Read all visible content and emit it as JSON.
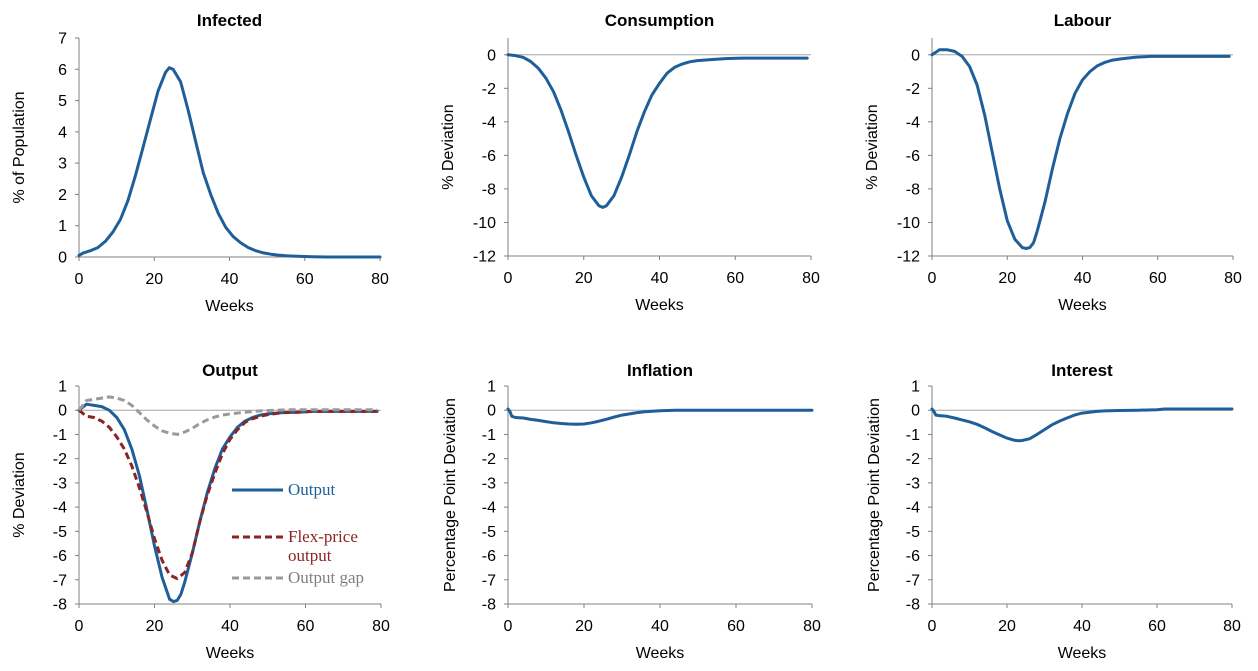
{
  "colors": {
    "blue": "#1f5f99",
    "red": "#8b2525",
    "gray": "#9a9a9a",
    "zero": "#a6a6a6",
    "axis": "#808080"
  },
  "chart_data": [
    {
      "type": "line",
      "title": "Infected",
      "xlabel": "Weeks",
      "ylabel": "% of Population",
      "xlim": [
        0,
        80
      ],
      "ylim": [
        0,
        7
      ],
      "xticks": [
        0,
        20,
        40,
        60,
        80
      ],
      "yticks": [
        0,
        1,
        2,
        3,
        4,
        5,
        6,
        7
      ],
      "zero_line": false,
      "series": [
        {
          "color": "blue",
          "dash": "solid",
          "x": [
            0,
            1,
            3,
            5,
            7,
            9,
            11,
            13,
            15,
            17,
            19,
            21,
            23,
            24,
            25,
            27,
            29,
            31,
            33,
            35,
            37,
            39,
            41,
            43,
            45,
            47,
            49,
            51,
            53,
            55,
            57,
            59,
            62,
            66,
            70,
            75,
            80
          ],
          "y": [
            0.05,
            0.12,
            0.2,
            0.3,
            0.5,
            0.8,
            1.2,
            1.8,
            2.6,
            3.5,
            4.4,
            5.3,
            5.9,
            6.05,
            6.0,
            5.6,
            4.7,
            3.7,
            2.7,
            2.0,
            1.4,
            0.95,
            0.65,
            0.45,
            0.3,
            0.2,
            0.13,
            0.09,
            0.06,
            0.04,
            0.03,
            0.02,
            0.01,
            0.0,
            0.0,
            0.0,
            0.0
          ]
        }
      ]
    },
    {
      "type": "line",
      "title": "Consumption",
      "xlabel": "Weeks",
      "ylabel": "% Deviation",
      "xlim": [
        0,
        80
      ],
      "ylim": [
        -12,
        1
      ],
      "xticks": [
        0,
        20,
        40,
        60,
        80
      ],
      "yticks": [
        0,
        -2,
        -4,
        -6,
        -8,
        -10,
        -12
      ],
      "zero_line": true,
      "series": [
        {
          "color": "blue",
          "dash": "solid",
          "x": [
            0,
            2,
            4,
            6,
            8,
            10,
            12,
            14,
            16,
            18,
            20,
            22,
            24,
            25,
            26,
            28,
            30,
            32,
            34,
            36,
            38,
            40,
            42,
            44,
            46,
            48,
            50,
            54,
            58,
            62,
            70,
            79
          ],
          "y": [
            0,
            -0.05,
            -0.15,
            -0.4,
            -0.8,
            -1.4,
            -2.2,
            -3.3,
            -4.6,
            -6.0,
            -7.3,
            -8.4,
            -9.0,
            -9.1,
            -9.0,
            -8.4,
            -7.3,
            -6.0,
            -4.6,
            -3.4,
            -2.4,
            -1.7,
            -1.1,
            -0.75,
            -0.55,
            -0.42,
            -0.35,
            -0.28,
            -0.22,
            -0.2,
            -0.2,
            -0.2
          ]
        }
      ]
    },
    {
      "type": "line",
      "title": "Labour",
      "xlabel": "Weeks",
      "ylabel": "% Deviation",
      "xlim": [
        0,
        80
      ],
      "ylim": [
        -12,
        1
      ],
      "xticks": [
        0,
        20,
        40,
        60,
        80
      ],
      "yticks": [
        0,
        -2,
        -4,
        -6,
        -8,
        -10,
        -12
      ],
      "zero_line": true,
      "series": [
        {
          "color": "blue",
          "dash": "solid",
          "x": [
            0,
            1,
            2,
            4,
            6,
            8,
            10,
            12,
            14,
            16,
            18,
            20,
            22,
            24,
            25,
            26,
            27,
            28,
            30,
            32,
            34,
            36,
            38,
            40,
            42,
            44,
            46,
            48,
            50,
            54,
            58,
            62,
            70,
            79
          ],
          "y": [
            0,
            0.15,
            0.3,
            0.3,
            0.2,
            -0.1,
            -0.7,
            -1.8,
            -3.6,
            -5.8,
            -8.0,
            -9.9,
            -11.0,
            -11.5,
            -11.55,
            -11.5,
            -11.2,
            -10.5,
            -8.8,
            -6.8,
            -5.0,
            -3.5,
            -2.3,
            -1.5,
            -1.0,
            -0.65,
            -0.45,
            -0.32,
            -0.25,
            -0.15,
            -0.1,
            -0.1,
            -0.1,
            -0.1
          ]
        }
      ]
    },
    {
      "type": "line",
      "title": "Output",
      "xlabel": "Weeks",
      "ylabel": "% Deviation",
      "xlim": [
        0,
        80
      ],
      "ylim": [
        -8,
        1
      ],
      "xticks": [
        0,
        20,
        40,
        60,
        80
      ],
      "yticks": [
        1,
        0,
        -1,
        -2,
        -3,
        -4,
        -5,
        -6,
        -7,
        -8
      ],
      "zero_line": true,
      "legend": {
        "placement": "inside-right",
        "entries": [
          "Output",
          "Flex-price output",
          "Output gap"
        ]
      },
      "series": [
        {
          "name": "Output",
          "color": "blue",
          "dash": "solid",
          "x": [
            0,
            2,
            4,
            6,
            8,
            10,
            12,
            14,
            16,
            18,
            20,
            22,
            24,
            25,
            26,
            27,
            28,
            30,
            32,
            34,
            36,
            38,
            40,
            42,
            44,
            46,
            48,
            50,
            54,
            58,
            62,
            70,
            79
          ],
          "y": [
            0,
            0.25,
            0.2,
            0.15,
            0.0,
            -0.3,
            -0.8,
            -1.6,
            -2.7,
            -4.1,
            -5.6,
            -6.9,
            -7.8,
            -7.9,
            -7.85,
            -7.6,
            -7.1,
            -5.9,
            -4.6,
            -3.4,
            -2.4,
            -1.6,
            -1.1,
            -0.7,
            -0.45,
            -0.3,
            -0.2,
            -0.15,
            -0.1,
            -0.08,
            -0.05,
            -0.05,
            -0.05
          ]
        },
        {
          "name": "Flex-price output",
          "color": "red",
          "dash": "dashed",
          "x": [
            0,
            2,
            4,
            6,
            8,
            10,
            12,
            14,
            16,
            18,
            20,
            22,
            24,
            26,
            28,
            30,
            32,
            34,
            36,
            38,
            40,
            42,
            44,
            46,
            48,
            50,
            54,
            58,
            62,
            70,
            79
          ],
          "y": [
            0,
            -0.25,
            -0.3,
            -0.45,
            -0.7,
            -1.1,
            -1.6,
            -2.3,
            -3.2,
            -4.2,
            -5.3,
            -6.2,
            -6.8,
            -6.95,
            -6.7,
            -5.9,
            -4.6,
            -3.5,
            -2.6,
            -1.8,
            -1.2,
            -0.8,
            -0.5,
            -0.35,
            -0.25,
            -0.18,
            -0.1,
            -0.08,
            -0.05,
            -0.05,
            -0.05
          ]
        },
        {
          "name": "Output gap",
          "color": "gray",
          "dash": "dashed",
          "x": [
            0,
            2,
            4,
            6,
            8,
            10,
            12,
            14,
            16,
            18,
            20,
            22,
            24,
            26,
            28,
            30,
            32,
            34,
            36,
            38,
            40,
            44,
            48,
            52,
            56,
            60,
            66,
            72,
            79
          ],
          "y": [
            0,
            0.4,
            0.45,
            0.5,
            0.55,
            0.5,
            0.4,
            0.2,
            -0.1,
            -0.4,
            -0.65,
            -0.85,
            -0.95,
            -1.0,
            -0.9,
            -0.75,
            -0.55,
            -0.4,
            -0.28,
            -0.2,
            -0.15,
            -0.08,
            -0.03,
            0.0,
            0.02,
            0.02,
            0.02,
            0.02,
            0.02
          ]
        }
      ]
    },
    {
      "type": "line",
      "title": "Inflation",
      "xlabel": "Weeks",
      "ylabel": "Percentage Point Deviation",
      "xlim": [
        0,
        80
      ],
      "ylim": [
        -8,
        1
      ],
      "xticks": [
        0,
        20,
        40,
        60,
        80
      ],
      "yticks": [
        1,
        0,
        -1,
        -2,
        -3,
        -4,
        -5,
        -6,
        -7,
        -8
      ],
      "zero_line": true,
      "series": [
        {
          "color": "blue",
          "dash": "solid",
          "x": [
            0,
            0.5,
            1,
            2,
            4,
            6,
            8,
            10,
            12,
            14,
            16,
            18,
            20,
            22,
            24,
            26,
            28,
            30,
            32,
            34,
            36,
            38,
            40,
            44,
            50,
            60,
            70,
            80
          ],
          "y": [
            0.05,
            -0.05,
            -0.25,
            -0.3,
            -0.32,
            -0.38,
            -0.42,
            -0.47,
            -0.52,
            -0.55,
            -0.57,
            -0.58,
            -0.57,
            -0.52,
            -0.45,
            -0.37,
            -0.28,
            -0.2,
            -0.15,
            -0.1,
            -0.06,
            -0.04,
            -0.02,
            0.0,
            0.0,
            0.0,
            0.0,
            0.0
          ]
        }
      ]
    },
    {
      "type": "line",
      "title": "Interest",
      "xlabel": "Weeks",
      "ylabel": "Percentage Point Deviation",
      "xlim": [
        0,
        80
      ],
      "ylim": [
        -8,
        1
      ],
      "xticks": [
        0,
        20,
        40,
        60,
        80
      ],
      "yticks": [
        1,
        0,
        -1,
        -2,
        -3,
        -4,
        -5,
        -6,
        -7,
        -8
      ],
      "zero_line": true,
      "series": [
        {
          "color": "blue",
          "dash": "solid",
          "x": [
            0,
            0.5,
            1,
            2,
            4,
            6,
            8,
            10,
            12,
            14,
            16,
            18,
            20,
            22,
            23,
            24,
            26,
            28,
            30,
            32,
            34,
            36,
            38,
            40,
            42,
            44,
            46,
            50,
            55,
            60,
            62,
            70,
            80
          ],
          "y": [
            0.05,
            -0.05,
            -0.2,
            -0.22,
            -0.25,
            -0.32,
            -0.4,
            -0.48,
            -0.58,
            -0.72,
            -0.88,
            -1.02,
            -1.15,
            -1.24,
            -1.26,
            -1.25,
            -1.18,
            -1.0,
            -0.8,
            -0.6,
            -0.45,
            -0.32,
            -0.2,
            -0.12,
            -0.08,
            -0.05,
            -0.03,
            -0.01,
            0.0,
            0.02,
            0.05,
            0.05,
            0.05
          ]
        }
      ]
    }
  ]
}
